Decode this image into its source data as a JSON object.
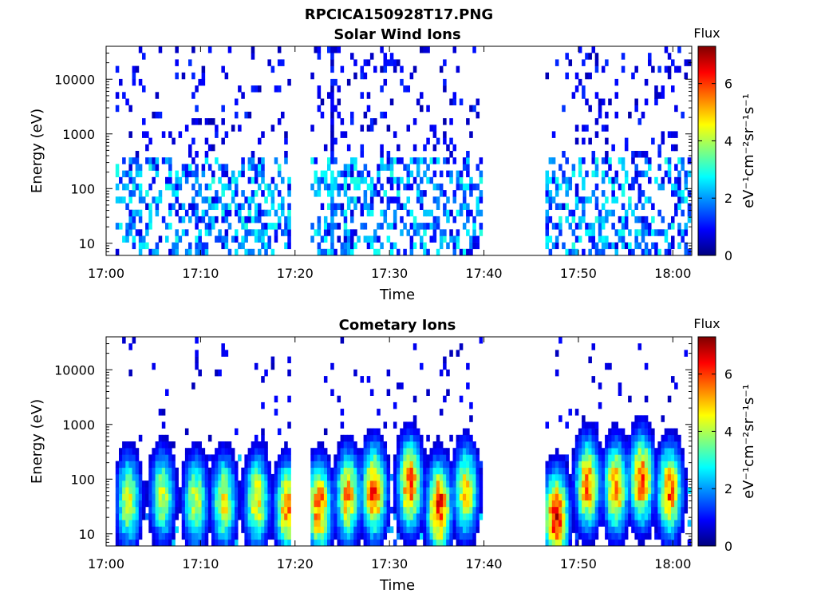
{
  "figure_title": "RPCICA150928T17.PNG",
  "colormap": [
    "#00007f",
    "#0000ff",
    "#007fff",
    "#00ffff",
    "#7fff7f",
    "#ffff00",
    "#ff7f00",
    "#ff0000",
    "#7f0000"
  ],
  "chart_data": [
    {
      "type": "heatmap",
      "title": "Solar Wind Ions",
      "xlabel": "Time",
      "ylabel": "Energy (eV)",
      "x_ticks": [
        "17:00",
        "17:10",
        "17:20",
        "17:30",
        "17:40",
        "17:50",
        "18:00"
      ],
      "x_range_minutes": [
        0,
        62
      ],
      "y_scale": "log",
      "y_ticks": [
        "10",
        "100",
        "1000",
        "10000"
      ],
      "y_range": [
        6,
        40000
      ],
      "colorbar": {
        "title": "Flux",
        "unit": "eV⁻¹cm⁻²sr⁻¹s⁻¹",
        "ticks": [
          "0",
          "2",
          "4",
          "6"
        ],
        "range": [
          0,
          7.3
        ]
      },
      "data_gaps_minutes": [
        [
          19.5,
          21.5
        ],
        [
          39.8,
          46.4
        ]
      ],
      "notable_features": [
        {
          "time_minute": 23.8,
          "description": "vertical streak spanning all energies"
        }
      ],
      "flux_bands": [
        {
          "energy_range_eV": [
            40,
            400
          ],
          "typical_flux": [
            0.8,
            3.0
          ]
        },
        {
          "energy_range_eV": [
            6,
            60
          ],
          "typical_flux": [
            0.8,
            3.0
          ]
        },
        {
          "energy_range_eV": [
            400,
            40000
          ],
          "typical_flux": [
            0.3,
            1.2
          ],
          "sparse": true
        }
      ]
    },
    {
      "type": "heatmap",
      "title": "Cometary Ions",
      "xlabel": "Time",
      "ylabel": "Energy (eV)",
      "x_ticks": [
        "17:00",
        "17:10",
        "17:20",
        "17:30",
        "17:40",
        "17:50",
        "18:00"
      ],
      "x_range_minutes": [
        0,
        62
      ],
      "y_scale": "log",
      "y_ticks": [
        "10",
        "100",
        "1000",
        "10000"
      ],
      "y_range": [
        6,
        40000
      ],
      "colorbar": {
        "title": "Flux",
        "unit": "eV⁻¹cm⁻²sr⁻¹s⁻¹",
        "ticks": [
          "0",
          "2",
          "4",
          "6"
        ],
        "range": [
          0,
          7.3
        ]
      },
      "data_gaps_minutes": [
        [
          19.5,
          21.5
        ],
        [
          39.8,
          46.4
        ]
      ],
      "bursts": [
        {
          "time_minute": 2.2,
          "peak_energy_eV": 40,
          "peak_flux": 4.5
        },
        {
          "time_minute": 5.8,
          "peak_energy_eV": 50,
          "peak_flux": 4.3
        },
        {
          "time_minute": 9.3,
          "peak_energy_eV": 40,
          "peak_flux": 4.4
        },
        {
          "time_minute": 12.3,
          "peak_energy_eV": 40,
          "peak_flux": 4.7
        },
        {
          "time_minute": 15.8,
          "peak_energy_eV": 40,
          "peak_flux": 4.9
        },
        {
          "time_minute": 19.0,
          "peak_energy_eV": 30,
          "peak_flux": 5.5
        },
        {
          "time_minute": 22.4,
          "peak_energy_eV": 30,
          "peak_flux": 6.0
        },
        {
          "time_minute": 25.4,
          "peak_energy_eV": 50,
          "peak_flux": 5.3
        },
        {
          "time_minute": 28.2,
          "peak_energy_eV": 60,
          "peak_flux": 6.2
        },
        {
          "time_minute": 32.0,
          "peak_energy_eV": 80,
          "peak_flux": 6.0
        },
        {
          "time_minute": 35.1,
          "peak_energy_eV": 30,
          "peak_flux": 6.5
        },
        {
          "time_minute": 37.9,
          "peak_energy_eV": 60,
          "peak_flux": 5.0
        },
        {
          "time_minute": 47.5,
          "peak_energy_eV": 20,
          "peak_flux": 6.8
        },
        {
          "time_minute": 50.8,
          "peak_energy_eV": 80,
          "peak_flux": 5.7
        },
        {
          "time_minute": 53.8,
          "peak_energy_eV": 70,
          "peak_flux": 5.6
        },
        {
          "time_minute": 56.5,
          "peak_energy_eV": 100,
          "peak_flux": 6.0
        },
        {
          "time_minute": 59.5,
          "peak_energy_eV": 60,
          "peak_flux": 5.8
        }
      ]
    }
  ]
}
